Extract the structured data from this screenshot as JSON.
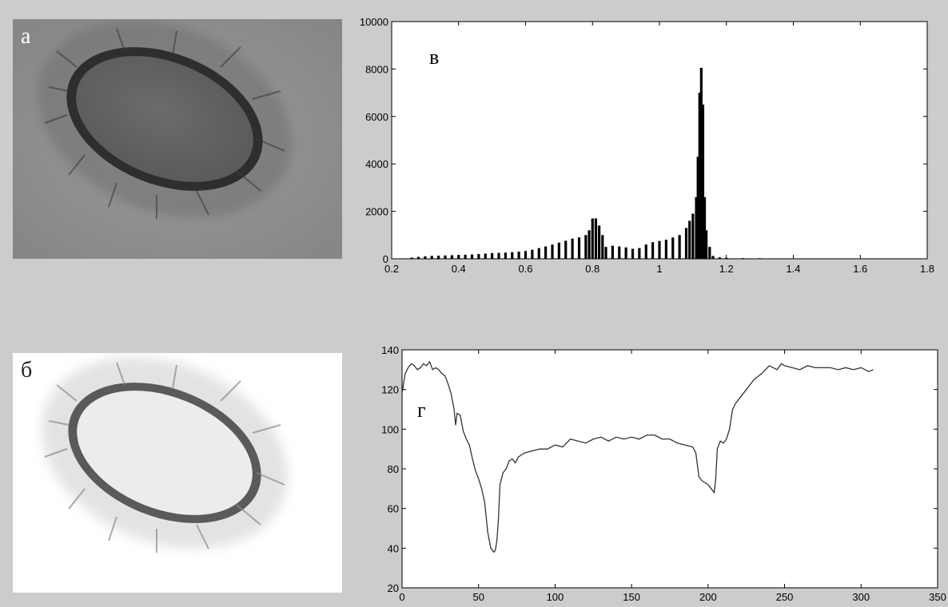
{
  "panels": {
    "a": {
      "letter": "а"
    },
    "b": {
      "letter": "б"
    }
  },
  "chart_data": [
    {
      "type": "bar",
      "panel_label": "в",
      "xlim": [
        0.2,
        1.8
      ],
      "ylim": [
        0,
        10000
      ],
      "xticks": [
        0.2,
        0.4,
        0.6,
        0.8,
        1,
        1.2,
        1.4,
        1.6,
        1.8
      ],
      "xtick_labels": [
        "0.2",
        "0.4",
        "0.6",
        "0.8",
        "1",
        "1.2",
        "1.4",
        "1.6",
        "1.8"
      ],
      "yticks": [
        0,
        2000,
        4000,
        6000,
        8000,
        10000
      ],
      "ytick_labels": [
        "0",
        "2000",
        "4000",
        "6000",
        "8000",
        "10000"
      ],
      "bar_color": "#000000",
      "x": [
        0.26,
        0.28,
        0.3,
        0.32,
        0.34,
        0.36,
        0.38,
        0.4,
        0.42,
        0.44,
        0.46,
        0.48,
        0.5,
        0.52,
        0.54,
        0.56,
        0.58,
        0.6,
        0.62,
        0.64,
        0.66,
        0.68,
        0.7,
        0.72,
        0.74,
        0.76,
        0.78,
        0.79,
        0.8,
        0.81,
        0.82,
        0.83,
        0.84,
        0.86,
        0.88,
        0.9,
        0.92,
        0.94,
        0.96,
        0.98,
        1.0,
        1.02,
        1.04,
        1.06,
        1.08,
        1.09,
        1.1,
        1.11,
        1.115,
        1.12,
        1.125,
        1.13,
        1.135,
        1.14,
        1.15,
        1.16,
        1.18,
        1.2,
        1.25,
        1.3,
        1.35,
        1.4,
        1.45
      ],
      "values": [
        50,
        80,
        100,
        120,
        130,
        140,
        150,
        160,
        170,
        180,
        200,
        220,
        240,
        250,
        260,
        280,
        300,
        330,
        380,
        450,
        520,
        600,
        680,
        760,
        850,
        900,
        1000,
        1200,
        1700,
        1700,
        1400,
        1000,
        500,
        550,
        520,
        480,
        420,
        450,
        600,
        700,
        750,
        800,
        900,
        1000,
        1300,
        1600,
        1900,
        2600,
        4300,
        7000,
        8050,
        6500,
        2600,
        1200,
        500,
        120,
        60,
        40,
        30,
        25,
        20,
        15,
        10
      ]
    },
    {
      "type": "line",
      "panel_label": "г",
      "xlim": [
        0,
        350
      ],
      "ylim": [
        20,
        140
      ],
      "xticks": [
        0,
        50,
        100,
        150,
        200,
        250,
        300,
        350
      ],
      "xtick_labels": [
        "0",
        "50",
        "100",
        "150",
        "200",
        "250",
        "300",
        "350"
      ],
      "yticks": [
        20,
        40,
        60,
        80,
        100,
        120,
        140
      ],
      "ytick_labels": [
        "20",
        "40",
        "60",
        "80",
        "100",
        "120",
        "140"
      ],
      "line_color": "#333333",
      "x": [
        0,
        2,
        4,
        6,
        8,
        10,
        12,
        14,
        16,
        18,
        20,
        22,
        24,
        26,
        28,
        30,
        32,
        34,
        35,
        36,
        38,
        40,
        42,
        44,
        46,
        48,
        50,
        52,
        54,
        56,
        58,
        60,
        61,
        62,
        63,
        64,
        66,
        68,
        70,
        72,
        74,
        76,
        78,
        80,
        85,
        90,
        95,
        100,
        105,
        110,
        115,
        120,
        125,
        130,
        135,
        140,
        145,
        150,
        155,
        160,
        165,
        170,
        175,
        180,
        185,
        190,
        192,
        194,
        196,
        198,
        200,
        202,
        204,
        205,
        206,
        208,
        210,
        212,
        214,
        216,
        218,
        220,
        225,
        230,
        235,
        240,
        245,
        248,
        250,
        255,
        260,
        265,
        270,
        275,
        280,
        285,
        290,
        295,
        300,
        305,
        308
      ],
      "values": [
        118,
        128,
        131,
        133,
        132,
        130,
        131,
        133,
        132,
        134,
        130,
        131,
        130,
        128,
        127,
        123,
        118,
        110,
        102,
        108,
        107,
        99,
        95,
        92,
        85,
        79,
        75,
        70,
        63,
        48,
        40,
        38,
        39,
        44,
        55,
        72,
        78,
        80,
        84,
        85,
        83,
        86,
        87,
        88,
        89,
        90,
        90,
        92,
        91,
        95,
        94,
        93,
        95,
        96,
        94,
        96,
        95,
        96,
        95,
        97,
        97,
        95,
        95,
        93,
        92,
        91,
        88,
        76,
        74,
        73,
        72,
        70,
        68,
        75,
        90,
        94,
        93,
        95,
        100,
        110,
        113,
        115,
        120,
        125,
        128,
        132,
        130,
        133,
        132,
        131,
        130,
        132,
        131,
        131,
        131,
        130,
        131,
        130,
        131,
        129,
        130
      ]
    }
  ]
}
